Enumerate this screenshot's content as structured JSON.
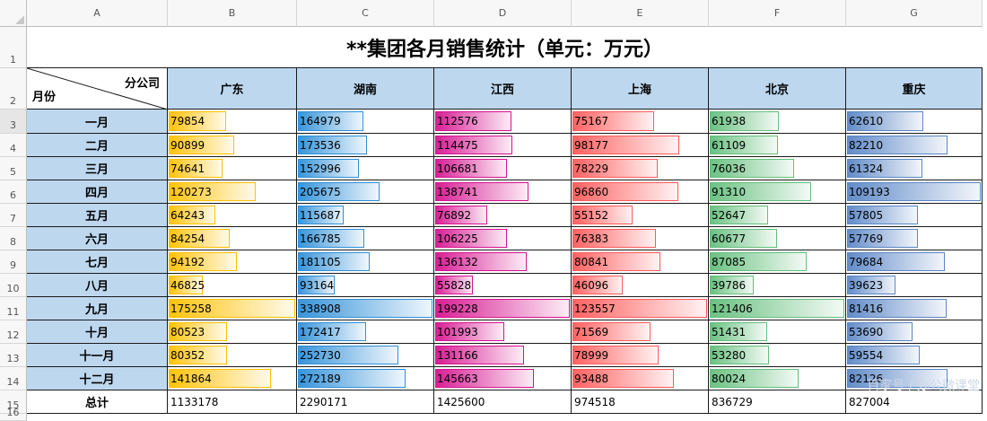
{
  "columns": [
    "A",
    "B",
    "C",
    "D",
    "E",
    "F",
    "G"
  ],
  "rows": [
    "1",
    "2",
    "3",
    "4",
    "5",
    "6",
    "7",
    "8",
    "9",
    "10",
    "11",
    "12",
    "13",
    "14",
    "15",
    "16"
  ],
  "title": "**集团各月销售统计（单元：万元）",
  "diag_header": {
    "top": "分公司",
    "bottom": "月份"
  },
  "branches": [
    {
      "name": "广东",
      "color": "#ffc000"
    },
    {
      "name": "湖南",
      "color": "#2e8fd8"
    },
    {
      "name": "江西",
      "color": "#d6138f"
    },
    {
      "name": "上海",
      "color": "#ff5a5a"
    },
    {
      "name": "北京",
      "color": "#63be7b"
    },
    {
      "name": "重庆",
      "color": "#5a86c6"
    }
  ],
  "months": [
    "一月",
    "二月",
    "三月",
    "四月",
    "五月",
    "六月",
    "七月",
    "八月",
    "九月",
    "十月",
    "十一月",
    "十二月"
  ],
  "sales": [
    [
      79854,
      164979,
      112576,
      75167,
      61938,
      62610
    ],
    [
      90899,
      173536,
      114475,
      98177,
      61109,
      82210
    ],
    [
      74641,
      152996,
      106681,
      78229,
      76036,
      61324
    ],
    [
      120273,
      205675,
      138741,
      96860,
      91310,
      109193
    ],
    [
      64243,
      115687,
      76892,
      55152,
      52647,
      57805
    ],
    [
      84254,
      166785,
      106225,
      76383,
      60677,
      57769
    ],
    [
      94192,
      181105,
      136132,
      80841,
      87085,
      79684
    ],
    [
      46825,
      93164,
      55828,
      46096,
      39786,
      39623
    ],
    [
      175258,
      338908,
      199228,
      123557,
      121406,
      81416
    ],
    [
      80523,
      172417,
      101993,
      71569,
      51431,
      53690
    ],
    [
      80352,
      252730,
      131166,
      78999,
      53280,
      59554
    ],
    [
      141864,
      272189,
      145663,
      93488,
      80024,
      82126
    ]
  ],
  "total_label": "总计",
  "totals": [
    "1133178",
    "2290171",
    "1425600",
    "974518",
    "836729",
    "827004"
  ],
  "selected_row": "3",
  "watermark": "百家号 / 办公微课堂"
}
